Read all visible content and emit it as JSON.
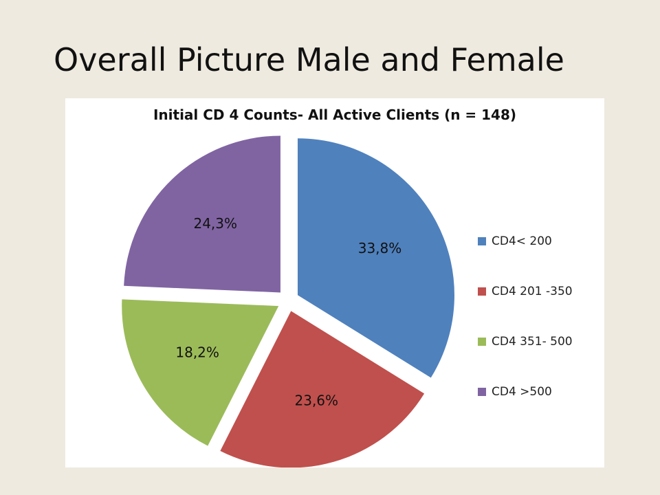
{
  "slide": {
    "title": "Overall Picture Male and Female"
  },
  "chart_data": {
    "type": "pie",
    "title": "Initial CD 4 Counts- All Active Clients (n = 148)",
    "legend_position": "right",
    "categories": [
      "CD4< 200",
      "CD4 201 -350",
      "CD4 351- 500",
      "CD4 >500"
    ],
    "values": [
      33.8,
      23.6,
      18.2,
      24.3
    ],
    "labels": [
      "33,8%",
      "23,6%",
      "18,2%",
      "24,3%"
    ],
    "colors": [
      "#4F81BD",
      "#C0504D",
      "#9BBB59",
      "#8064A2"
    ],
    "exploded": true
  }
}
